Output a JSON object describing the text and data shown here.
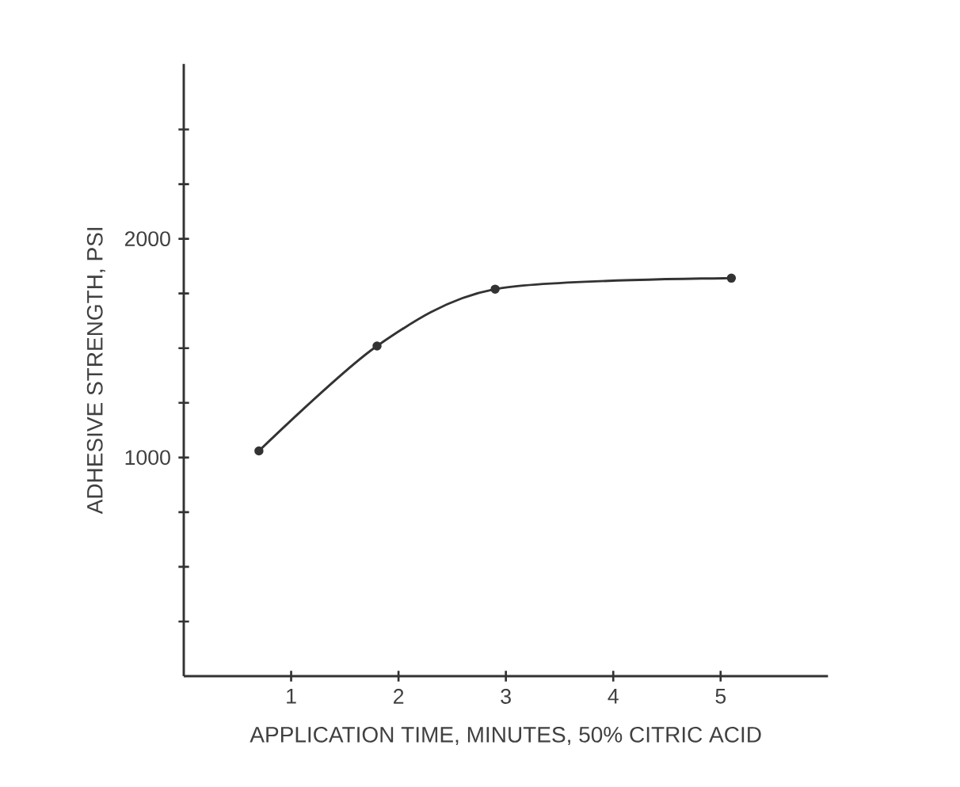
{
  "chart_data": {
    "type": "line",
    "xlabel": "APPLICATION TIME, MINUTES, 50% CITRIC ACID",
    "ylabel": "ADHESIVE STRENGTH, PSI",
    "x": [
      0.7,
      1.8,
      2.9,
      5.1
    ],
    "series": [
      {
        "color": "#333333",
        "values": [
          1030,
          1510,
          1770,
          1820
        ]
      }
    ],
    "xlim": [
      0,
      6
    ],
    "xticks": [
      1,
      2,
      3,
      4,
      5
    ],
    "ylim": [
      0,
      2800
    ],
    "yticks": [
      {
        "value": 250,
        "label": null
      },
      {
        "value": 500,
        "label": null
      },
      {
        "value": 750,
        "label": null
      },
      1000,
      {
        "value": 1250,
        "label": null
      },
      {
        "value": 1500,
        "label": null
      },
      {
        "value": 1750,
        "label": null
      },
      2000,
      {
        "value": 2250,
        "label": null
      },
      {
        "value": 2500,
        "label": null
      }
    ],
    "marker": "circle",
    "line_style": "solid"
  }
}
